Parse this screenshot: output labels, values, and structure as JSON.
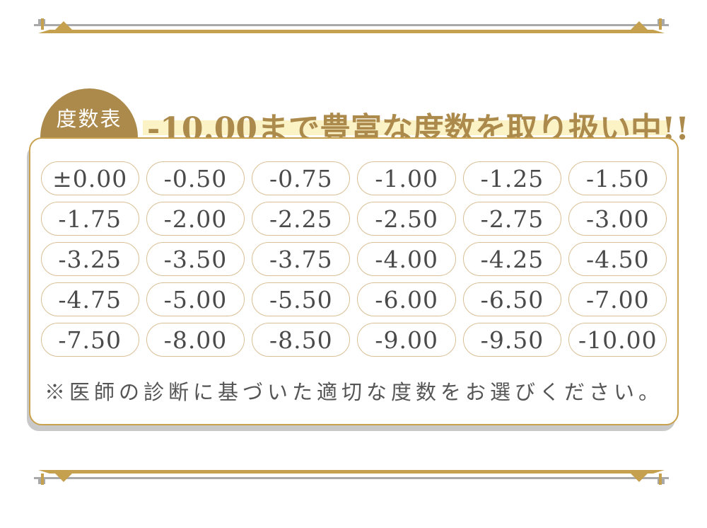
{
  "colors": {
    "gold": "#ac8a4c",
    "gold_line": "#c5a04f",
    "gray_line": "#a9a9a9",
    "card_border": "#c9a24f",
    "pill_border": "#d9bf95",
    "pill_text": "#4a4a4a",
    "note_text": "#555555",
    "highlight": "#fbf3c6",
    "shadow": "#c9c9c9",
    "badge_text": "#ffffff"
  },
  "header": {
    "badge_label": "度数表",
    "title": "-10.00まで豊富な度数を取り扱い中!!"
  },
  "power_table": {
    "rows": [
      [
        "±0.00",
        "-0.50",
        "-0.75",
        "-1.00",
        "-1.25",
        "-1.50"
      ],
      [
        "-1.75",
        "-2.00",
        "-2.25",
        "-2.50",
        "-2.75",
        "-3.00"
      ],
      [
        "-3.25",
        "-3.50",
        "-3.75",
        "-4.00",
        "-4.25",
        "-4.50"
      ],
      [
        "-4.75",
        "-5.00",
        "-5.50",
        "-6.00",
        "-6.50",
        "-7.00"
      ],
      [
        "-7.50",
        "-8.00",
        "-8.50",
        "-9.00",
        "-9.50",
        "-10.00"
      ]
    ],
    "note": "※医師の診断に基づいた適切な度数をお選びください。"
  }
}
